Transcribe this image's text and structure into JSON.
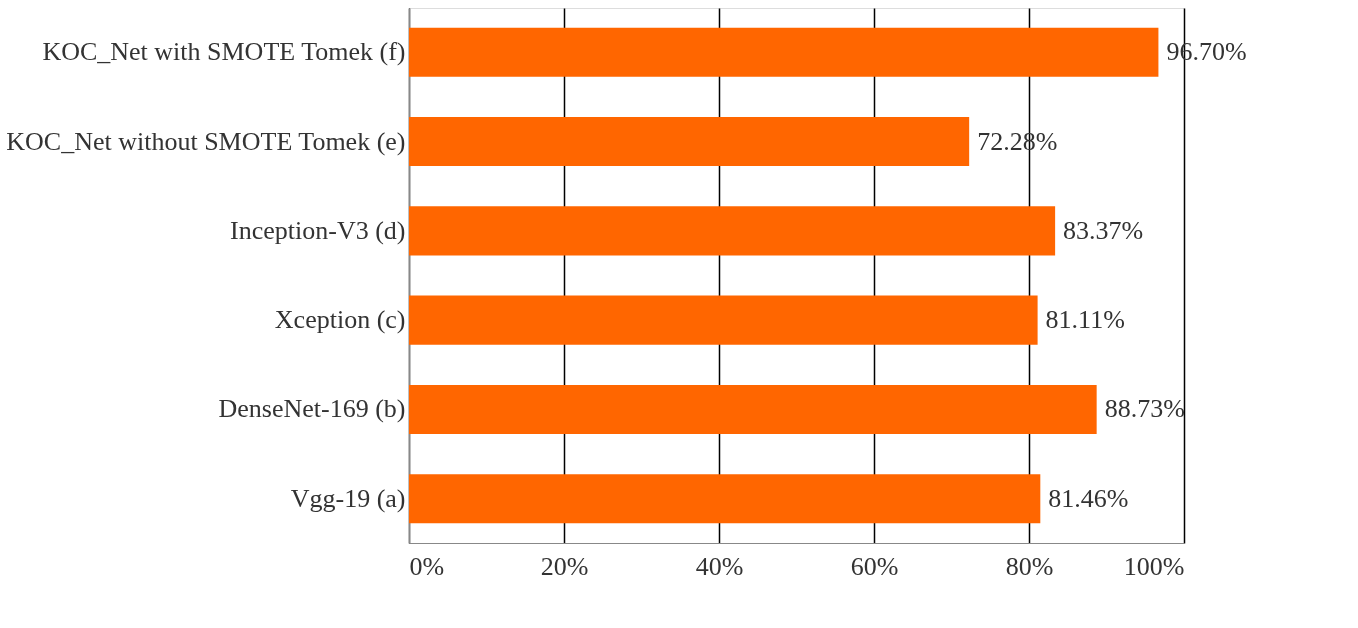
{
  "chart_data": {
    "type": "bar",
    "orientation": "horizontal",
    "categories": [
      "KOC_Net with SMOTE Tomek (f)",
      "KOC_Net without SMOTE Tomek (e)",
      "Inception-V3 (d)",
      "Xception (c)",
      "DenseNet-169 (b)",
      "Vgg-19 (a)"
    ],
    "values": [
      96.7,
      72.28,
      83.37,
      81.11,
      88.73,
      81.46
    ],
    "value_labels": [
      "96.70%",
      "72.28%",
      "83.37%",
      "81.11%",
      "88.73%",
      "81.46%"
    ],
    "color": "#ff6600",
    "xlim": [
      0,
      100
    ],
    "xticks": [
      {
        "value": 0,
        "label": "0%"
      },
      {
        "value": 20,
        "label": "20%"
      },
      {
        "value": 40,
        "label": "40%"
      },
      {
        "value": 60,
        "label": "60%"
      },
      {
        "value": 80,
        "label": "80%"
      },
      {
        "value": 100,
        "label": "100%"
      }
    ],
    "grid": "x"
  }
}
